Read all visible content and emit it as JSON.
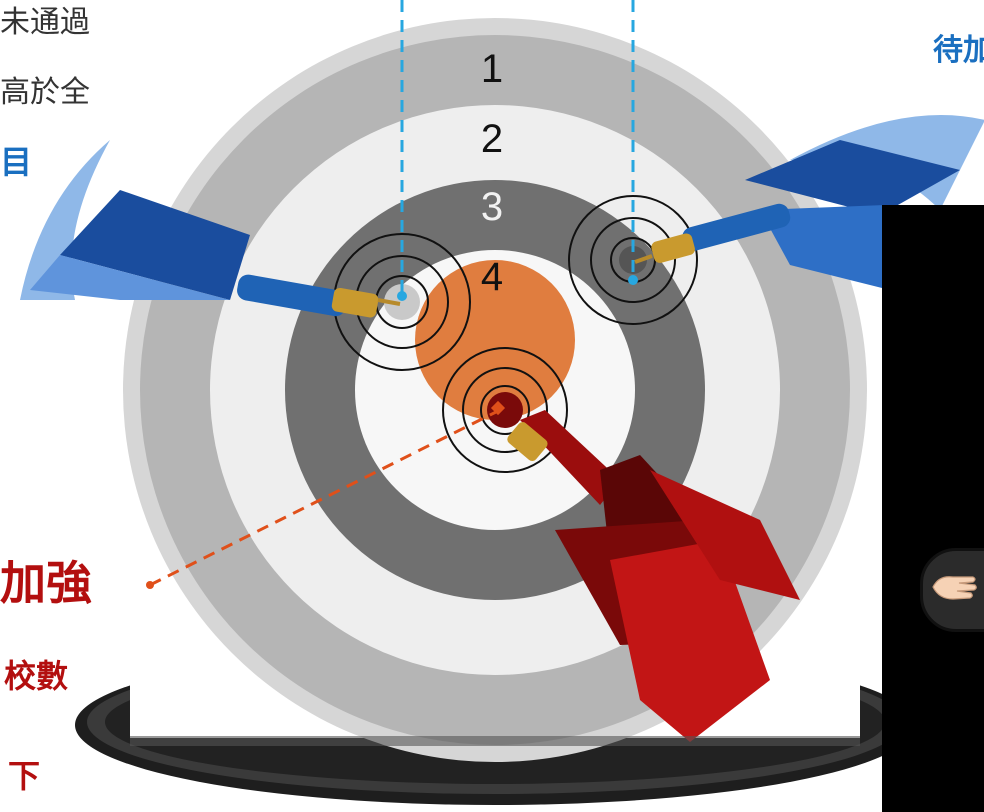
{
  "text_fragments": {
    "top_line_1": "未通過",
    "top_line_2": "高於全",
    "top_line_3": "目",
    "right_top": "待加",
    "red_main": "加強",
    "red_sub_1": "校數",
    "red_sub_2": "下"
  },
  "target": {
    "ring_labels": [
      "1",
      "2",
      "3",
      "4"
    ],
    "colors": {
      "outer": "#c9c9c9",
      "ring_light": "#e6e6e6",
      "ring_dark": "#7a7a7a",
      "inner_white": "#f5f5f5",
      "bullseye": "#e07d3f",
      "base": "#2a2a2a"
    }
  },
  "darts": [
    {
      "name": "blue-dart-left",
      "color": "#1f6fbf",
      "fletch_color": "#2e63b8"
    },
    {
      "name": "blue-dart-right",
      "color": "#1f6fbf",
      "fletch_color": "#2e63b8"
    },
    {
      "name": "red-dart-center",
      "color": "#a30d0d",
      "fletch_color": "#b81414"
    }
  ],
  "panel": {
    "background": "#000000"
  },
  "icons": {
    "hand": "open-hand-icon"
  }
}
